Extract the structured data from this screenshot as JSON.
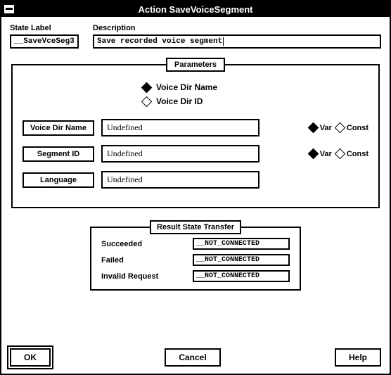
{
  "window": {
    "title": "Action SaveVoiceSegment"
  },
  "top": {
    "state_label_caption": "State Label",
    "description_caption": "Description",
    "state_label_value": "__SaveVceSeg3",
    "description_value": "Save recorded voice segment"
  },
  "parameters": {
    "legend": "Parameters",
    "mode_options": {
      "voice_dir_name": "Voice Dir Name",
      "voice_dir_id": "Voice Dir ID",
      "selected": "voice_dir_name"
    },
    "var_label": "Var",
    "const_label": "Const",
    "rows": [
      {
        "label": "Voice Dir Name",
        "value": "Undefined",
        "show_varconst": true,
        "varconst": "Var"
      },
      {
        "label": "Segment ID",
        "value": "Undefined",
        "show_varconst": true,
        "varconst": "Var"
      },
      {
        "label": "Language",
        "value": "Undefined",
        "show_varconst": false
      }
    ]
  },
  "result_state_transfer": {
    "legend": "Result State Transfer",
    "rows": [
      {
        "label": "Succeeded",
        "value": "__NOT_CONNECTED"
      },
      {
        "label": "Failed",
        "value": "__NOT_CONNECTED"
      },
      {
        "label": "Invalid Request",
        "value": "__NOT_CONNECTED"
      }
    ]
  },
  "buttons": {
    "ok": "OK",
    "cancel": "Cancel",
    "help": "Help"
  },
  "style": {
    "bg": "#ffffff",
    "fg": "#000000",
    "font_size_base": 11,
    "font_size_title": 13,
    "border_width": 2
  }
}
